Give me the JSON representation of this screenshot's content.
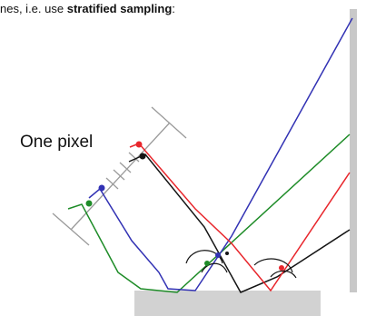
{
  "caption": {
    "prefix": "nes, i.e. use ",
    "emphasis": "stratified sampling",
    "suffix": ":"
  },
  "pixel_label": "One pixel",
  "colors": {
    "blue": "#3232b4",
    "red": "#e8262c",
    "green": "#1e8c28",
    "black": "#141414",
    "grey": "#9a9a9a",
    "wall": "#c8c8c8",
    "floor": "#d2d2d2"
  }
}
